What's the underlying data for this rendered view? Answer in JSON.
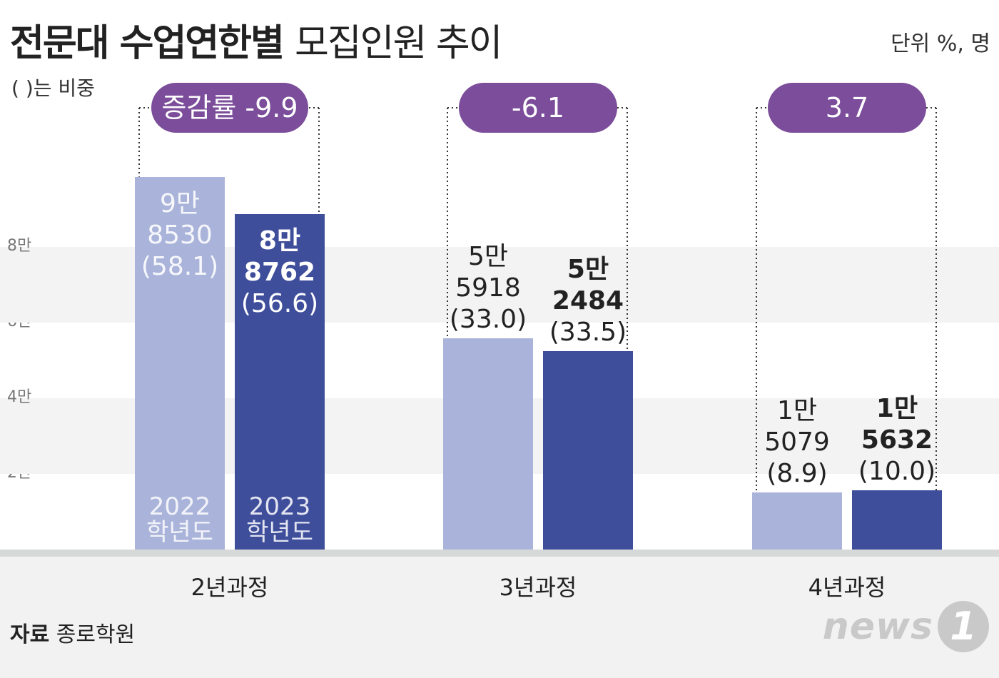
{
  "title_bold": "전문대 수업연한별",
  "title_light": "모집인원 추이",
  "unit": "단위 %, 명",
  "note": "( )는 비중",
  "source_label": "자료",
  "source": "종로학원",
  "logo_word": "news",
  "logo_num": "1",
  "colors": {
    "y2022": "#aab4da",
    "y2023": "#3f4e9b",
    "pill": "#7b4d9a"
  },
  "year_labels": [
    {
      "line1": "2022",
      "line2": "학년도"
    },
    {
      "line1": "2023",
      "line2": "학년도"
    }
  ],
  "chart_data": {
    "type": "bar",
    "categories": [
      "2년과정",
      "3년과정",
      "4년과정"
    ],
    "series": [
      {
        "name": "2022 학년도",
        "values": [
          98530,
          55918,
          15079
        ],
        "shares": [
          58.1,
          33.0,
          8.9
        ]
      },
      {
        "name": "2023 학년도",
        "values": [
          88762,
          52484,
          15632
        ],
        "shares": [
          56.6,
          33.5,
          10.0
        ]
      }
    ],
    "growth_label_prefix": "증감률",
    "growth": [
      -9.9,
      -6.1,
      3.7
    ],
    "ytick_labels": [
      "2만",
      "4만",
      "6만",
      "8만"
    ],
    "yticks": [
      20000,
      40000,
      60000,
      80000
    ],
    "ylim": [
      0,
      100000
    ],
    "value_labels": [
      [
        {
          "l1": "9만",
          "l2": "8530",
          "l3": "(58.1)"
        },
        {
          "l1": "8만",
          "l2": "8762",
          "l3": "(56.6)"
        }
      ],
      [
        {
          "l1": "5만",
          "l2": "5918",
          "l3": "(33.0)"
        },
        {
          "l1": "5만",
          "l2": "2484",
          "l3": "(33.5)"
        }
      ],
      [
        {
          "l1": "1만",
          "l2": "5079",
          "l3": "(8.9)"
        },
        {
          "l1": "1만",
          "l2": "5632",
          "l3": "(10.0)"
        }
      ]
    ],
    "pill_labels": [
      "증감률 -9.9",
      "-6.1",
      "3.7"
    ]
  }
}
